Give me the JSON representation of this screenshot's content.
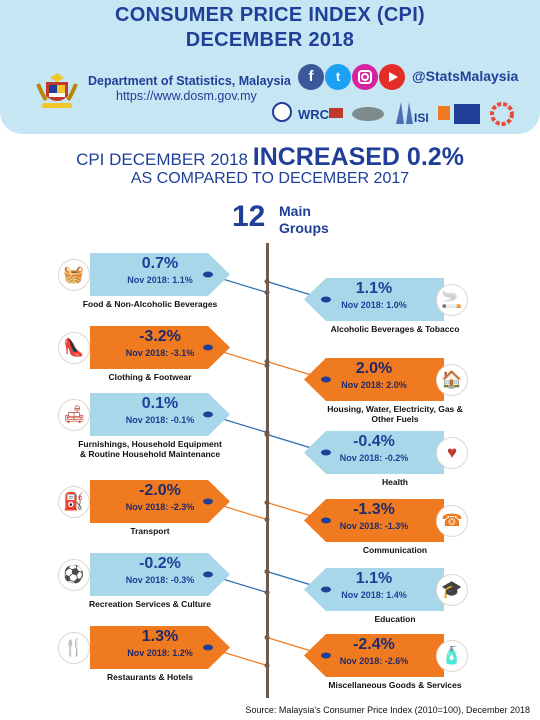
{
  "header": {
    "title_line1": "CONSUMER PRICE INDEX (CPI)",
    "title_line2": "DECEMBER 2018",
    "department": "Department of Statistics, Malaysia",
    "website": "https://www.dosm.gov.my",
    "social_handle": "@StatsMalaysia",
    "social_icons": [
      "facebook-icon",
      "twitter-icon",
      "instagram-icon",
      "youtube-icon"
    ],
    "logo_texts": [
      "WRC",
      "ISI"
    ]
  },
  "headline": {
    "prefix": "CPI DECEMBER 2018",
    "emphasis": "INCREASED 0.2%",
    "line2": "AS COMPARED TO DECEMBER 2017"
  },
  "groups_label": {
    "count": "12",
    "word1": "Main",
    "word2": "Groups"
  },
  "groups": [
    {
      "name": "Food & Non-Alcoholic Beverages",
      "value": "0.7%",
      "prev": "Nov 2018: 1.1%",
      "color": "blue",
      "icon": "food-basket-icon"
    },
    {
      "name": "Alcoholic Beverages & Tobacco",
      "value": "1.1%",
      "prev": "Nov 2018: 1.0%",
      "color": "blue",
      "icon": "tobacco-icon"
    },
    {
      "name": "Clothing & Footwear",
      "value": "-3.2%",
      "prev": "Nov 2018: -3.1%",
      "color": "orange",
      "icon": "shoe-icon"
    },
    {
      "name": "Housing, Water, Electricity, Gas & Other Fuels",
      "value": "2.0%",
      "prev": "Nov 2018: 2.0%",
      "color": "orange",
      "icon": "house-icon"
    },
    {
      "name": "Furnishings, Household Equipment & Routine Household Maintenance",
      "value": "0.1%",
      "prev": "Nov 2018: -0.1%",
      "color": "blue",
      "icon": "sofa-icon"
    },
    {
      "name": "Health",
      "value": "-0.4%",
      "prev": "Nov 2018: -0.2%",
      "color": "blue",
      "icon": "heart-icon"
    },
    {
      "name": "Transport",
      "value": "-2.0%",
      "prev": "Nov 2018: -2.3%",
      "color": "orange",
      "icon": "fuel-pump-icon"
    },
    {
      "name": "Communication",
      "value": "-1.3%",
      "prev": "Nov 2018: -1.3%",
      "color": "orange",
      "icon": "telephone-icon"
    },
    {
      "name": "Recreation Services & Culture",
      "value": "-0.2%",
      "prev": "Nov 2018: -0.3%",
      "color": "blue",
      "icon": "recreation-icon"
    },
    {
      "name": "Education",
      "value": "1.1%",
      "prev": "Nov 2018: 1.4%",
      "color": "blue",
      "icon": "books-icon"
    },
    {
      "name": "Restaurants & Hotels",
      "value": "1.3%",
      "prev": "Nov 2018: 1.2%",
      "color": "orange",
      "icon": "restaurant-icon"
    },
    {
      "name": "Miscellaneous Goods & Services",
      "value": "-2.4%",
      "prev": "Nov 2018: -2.6%",
      "color": "orange",
      "icon": "toiletries-icon"
    }
  ],
  "colors": {
    "navy": "#1f3f98",
    "blue_box": "#a8d7ea",
    "orange_box": "#f07a1f",
    "header_bg": "#c6e6f3"
  },
  "source": "Source: Malaysia's Consumer Price Index (2010=100), December  2018"
}
